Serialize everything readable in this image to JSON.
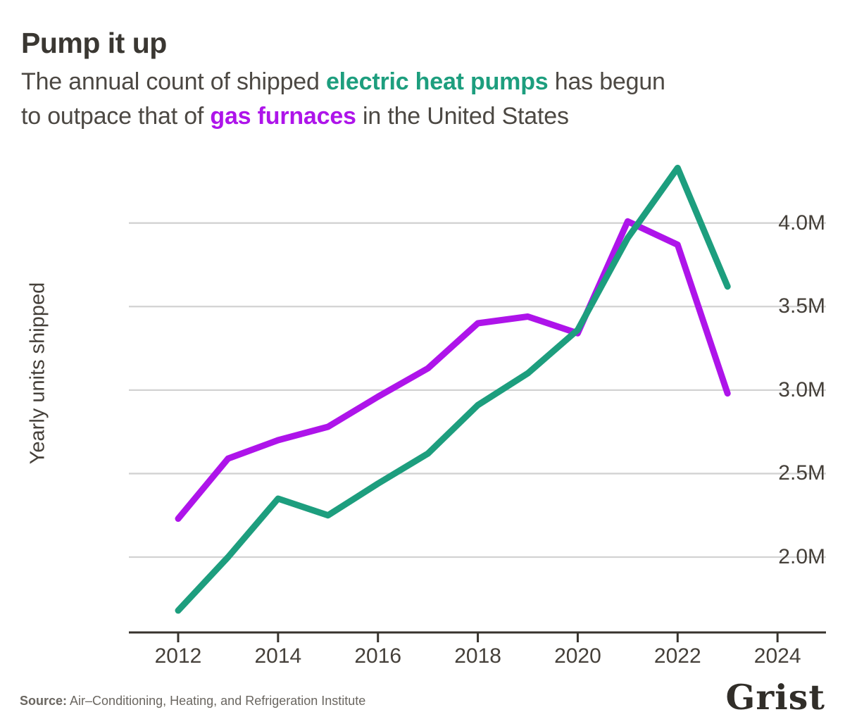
{
  "header": {
    "title": "Pump it up",
    "subtitle_lines": [
      [
        {
          "text": "The annual count of shipped ",
          "style": "plain"
        },
        {
          "text": "electric heat pumps",
          "style": "heat_pumps"
        },
        {
          "text": " has begun",
          "style": "plain"
        }
      ],
      [
        {
          "text": "to outpace that of ",
          "style": "plain"
        },
        {
          "text": "gas furnaces",
          "style": "gas_furnaces"
        },
        {
          "text": " in the United States",
          "style": "plain"
        }
      ]
    ]
  },
  "chart_data": {
    "type": "line",
    "title": "Pump it up",
    "xlabel": "",
    "ylabel": "Yearly units shipped",
    "units": "millions of units per year",
    "grid": "horizontal",
    "legend_position": "none (colors referenced in subtitle)",
    "x": [
      2012,
      2013,
      2014,
      2015,
      2016,
      2017,
      2018,
      2019,
      2020,
      2021,
      2022,
      2023
    ],
    "series": [
      {
        "name": "electric heat pumps",
        "color": "#1d9e7e",
        "values": [
          1.68,
          2.0,
          2.35,
          2.25,
          2.44,
          2.62,
          2.91,
          3.1,
          3.36,
          3.91,
          4.33,
          3.62
        ]
      },
      {
        "name": "gas furnaces",
        "color": "#ae14ea",
        "values": [
          2.23,
          2.59,
          2.7,
          2.78,
          2.96,
          3.13,
          3.4,
          3.44,
          3.34,
          4.01,
          3.87,
          2.98
        ]
      }
    ],
    "x_ticks": [
      {
        "value": 2012,
        "label": "2012"
      },
      {
        "value": 2014,
        "label": "2014"
      },
      {
        "value": 2016,
        "label": "2016"
      },
      {
        "value": 2018,
        "label": "2018"
      },
      {
        "value": 2020,
        "label": "2020"
      },
      {
        "value": 2022,
        "label": "2022"
      },
      {
        "value": 2024,
        "label": "2024"
      }
    ],
    "y_ticks": [
      {
        "value": 2.0,
        "label": "2.0M"
      },
      {
        "value": 2.5,
        "label": "2.5M"
      },
      {
        "value": 3.0,
        "label": "3.0M"
      },
      {
        "value": 3.5,
        "label": "3.5M"
      },
      {
        "value": 4.0,
        "label": "4.0M"
      }
    ],
    "xlim": [
      2011,
      2025
    ],
    "ylim": [
      1.55,
      4.41
    ]
  },
  "footer": {
    "source_bold": "Source:",
    "source_text": " Air–Conditioning, Heating, and Refrigeration Institute",
    "logo_text": "Grist"
  },
  "colors": {
    "heat_pumps": "#1d9e7e",
    "gas_furnaces": "#ae14ea",
    "title_text": "#3a3732",
    "body_text": "#4c4843",
    "tick_text": "#45403a",
    "axis": "#37332d",
    "grid": "#d2d2d2",
    "source_text": "#6a6660",
    "logo": "#312e29",
    "background": "#ffffff"
  }
}
